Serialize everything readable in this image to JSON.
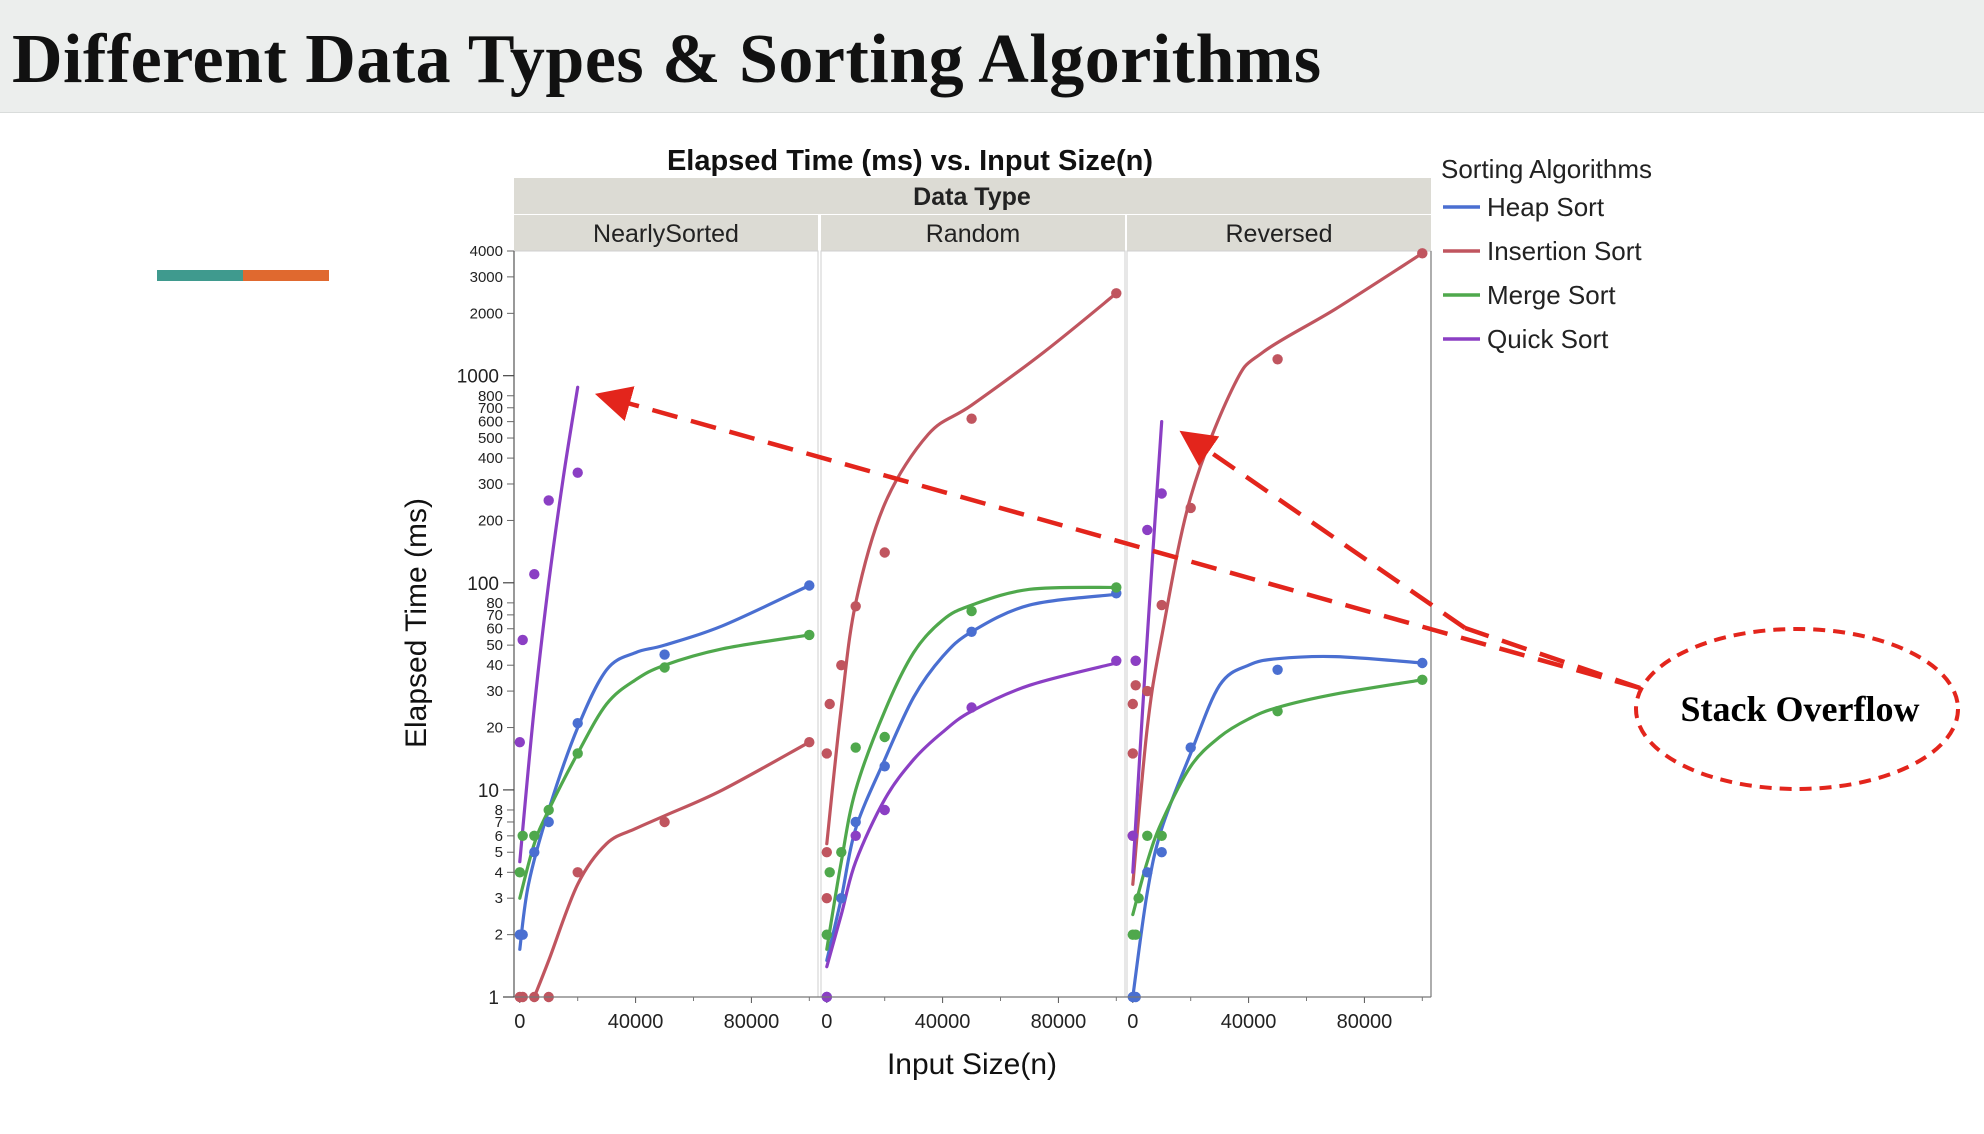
{
  "slide": {
    "title": "Different Data Types & Sorting Algorithms"
  },
  "colors": {
    "heap": "#4a6fd1",
    "insertion": "#c0555f",
    "merge": "#4fa84c",
    "quick": "#8b3fc4",
    "annotation": "#e3251c",
    "accent_teal": "#3f9a8e",
    "accent_orange": "#e0692f"
  },
  "chart_data": {
    "type": "scatter",
    "title": "Elapsed Time (ms) vs. Input Size(n)",
    "facet_header": "Data Type",
    "xlabel": "Input Size(n)",
    "ylabel": "Elapsed Time (ms)",
    "yscale": "log",
    "ylim": [
      1,
      4000
    ],
    "xlim": [
      -2000,
      103000
    ],
    "xticks": [
      0,
      40000,
      80000
    ],
    "yticks_major": [
      1,
      10,
      100,
      1000
    ],
    "yticks_minor": [
      2,
      3,
      4,
      5,
      6,
      7,
      8,
      20,
      30,
      40,
      50,
      60,
      70,
      80,
      200,
      300,
      400,
      500,
      600,
      700,
      800,
      2000,
      3000,
      4000
    ],
    "legend": {
      "title": "Sorting Algorithms",
      "placement": "right"
    },
    "series_names": [
      "Heap Sort",
      "Insertion Sort",
      "Merge Sort",
      "Quick Sort"
    ],
    "series_keys": [
      "heap",
      "insertion",
      "merge",
      "quick"
    ],
    "panels": [
      {
        "name": "NearlySorted",
        "series": {
          "heap": {
            "points": [
              [
                0,
                2
              ],
              [
                1000,
                2
              ],
              [
                5000,
                5
              ],
              [
                10000,
                7
              ],
              [
                20000,
                21
              ],
              [
                50000,
                45
              ],
              [
                100000,
                97
              ]
            ],
            "curve": [
              [
                0,
                1.7
              ],
              [
                3000,
                3.5
              ],
              [
                10000,
                8
              ],
              [
                20000,
                20
              ],
              [
                30000,
                38
              ],
              [
                40000,
                46
              ],
              [
                50000,
                50
              ],
              [
                70000,
                62
              ],
              [
                100000,
                97
              ]
            ]
          },
          "insertion": {
            "points": [
              [
                0,
                1
              ],
              [
                1000,
                1
              ],
              [
                5000,
                1
              ],
              [
                10000,
                1
              ],
              [
                20000,
                4
              ],
              [
                50000,
                7
              ],
              [
                100000,
                17
              ]
            ],
            "curve": [
              [
                5000,
                1
              ],
              [
                10000,
                1.5
              ],
              [
                20000,
                3.5
              ],
              [
                30000,
                5.5
              ],
              [
                40000,
                6.5
              ],
              [
                50000,
                7.5
              ],
              [
                70000,
                10
              ],
              [
                100000,
                17
              ]
            ]
          },
          "merge": {
            "points": [
              [
                0,
                4
              ],
              [
                1000,
                6
              ],
              [
                5000,
                6
              ],
              [
                10000,
                8
              ],
              [
                20000,
                15
              ],
              [
                50000,
                39
              ],
              [
                100000,
                56
              ]
            ],
            "curve": [
              [
                0,
                3
              ],
              [
                5000,
                5.5
              ],
              [
                10000,
                8
              ],
              [
                20000,
                15
              ],
              [
                30000,
                26
              ],
              [
                40000,
                34
              ],
              [
                50000,
                40
              ],
              [
                70000,
                48
              ],
              [
                100000,
                56
              ]
            ]
          },
          "quick": {
            "points": [
              [
                0,
                17
              ],
              [
                1000,
                53
              ],
              [
                5000,
                110
              ],
              [
                10000,
                250
              ],
              [
                20000,
                340
              ]
            ],
            "curve": [
              [
                0,
                4.5
              ],
              [
                5000,
                25
              ],
              [
                10000,
                100
              ],
              [
                15000,
                320
              ],
              [
                20000,
                880
              ]
            ]
          }
        }
      },
      {
        "name": "Random",
        "series": {
          "heap": {
            "points": [
              [
                0,
                1
              ],
              [
                5000,
                3
              ],
              [
                10000,
                7
              ],
              [
                20000,
                13
              ],
              [
                50000,
                58
              ],
              [
                100000,
                89
              ]
            ],
            "curve": [
              [
                0,
                1.5
              ],
              [
                5000,
                3
              ],
              [
                10000,
                6.5
              ],
              [
                20000,
                14
              ],
              [
                30000,
                28
              ],
              [
                40000,
                44
              ],
              [
                50000,
                58
              ],
              [
                70000,
                78
              ],
              [
                100000,
                88
              ]
            ]
          },
          "insertion": {
            "points": [
              [
                0,
                5
              ],
              [
                0,
                3
              ],
              [
                0,
                15
              ],
              [
                1000,
                26
              ],
              [
                5000,
                40
              ],
              [
                10000,
                77
              ],
              [
                20000,
                140
              ],
              [
                50000,
                620
              ],
              [
                100000,
                2500
              ]
            ],
            "curve": [
              [
                0,
                5.5
              ],
              [
                5000,
                25
              ],
              [
                10000,
                80
              ],
              [
                20000,
                240
              ],
              [
                35000,
                520
              ],
              [
                50000,
                720
              ],
              [
                75000,
                1300
              ],
              [
                100000,
                2500
              ]
            ]
          },
          "merge": {
            "points": [
              [
                0,
                2
              ],
              [
                1000,
                4
              ],
              [
                5000,
                5
              ],
              [
                10000,
                16
              ],
              [
                20000,
                18
              ],
              [
                50000,
                73
              ],
              [
                100000,
                95
              ]
            ],
            "curve": [
              [
                0,
                1.7
              ],
              [
                5000,
                4.5
              ],
              [
                10000,
                10
              ],
              [
                20000,
                24
              ],
              [
                30000,
                46
              ],
              [
                40000,
                66
              ],
              [
                50000,
                78
              ],
              [
                70000,
                93
              ],
              [
                100000,
                95
              ]
            ]
          },
          "quick": {
            "points": [
              [
                0,
                1
              ],
              [
                10000,
                6
              ],
              [
                20000,
                8
              ],
              [
                50000,
                25
              ],
              [
                100000,
                42
              ]
            ],
            "curve": [
              [
                0,
                1.4
              ],
              [
                5000,
                2.5
              ],
              [
                10000,
                4.5
              ],
              [
                20000,
                9
              ],
              [
                30000,
                14
              ],
              [
                40000,
                19
              ],
              [
                50000,
                24
              ],
              [
                70000,
                32
              ],
              [
                100000,
                41
              ]
            ]
          }
        }
      },
      {
        "name": "Reversed",
        "series": {
          "heap": {
            "points": [
              [
                0,
                1
              ],
              [
                1000,
                1
              ],
              [
                5000,
                4
              ],
              [
                10000,
                5
              ],
              [
                20000,
                16
              ],
              [
                50000,
                38
              ],
              [
                100000,
                41
              ]
            ],
            "curve": [
              [
                0,
                1
              ],
              [
                5000,
                3.2
              ],
              [
                10000,
                6.5
              ],
              [
                20000,
                15
              ],
              [
                30000,
                32
              ],
              [
                40000,
                40
              ],
              [
                50000,
                43
              ],
              [
                70000,
                44
              ],
              [
                100000,
                41
              ]
            ]
          },
          "insertion": {
            "points": [
              [
                0,
                6
              ],
              [
                0,
                15
              ],
              [
                0,
                26
              ],
              [
                1000,
                32
              ],
              [
                1000,
                42
              ],
              [
                5000,
                30
              ],
              [
                10000,
                78
              ],
              [
                20000,
                230
              ],
              [
                50000,
                1200
              ],
              [
                100000,
                3900
              ]
            ],
            "curve": [
              [
                0,
                3.5
              ],
              [
                5000,
                20
              ],
              [
                10000,
                55
              ],
              [
                20000,
                260
              ],
              [
                35000,
                900
              ],
              [
                45000,
                1300
              ],
              [
                70000,
                2100
              ],
              [
                100000,
                3900
              ]
            ]
          },
          "merge": {
            "points": [
              [
                0,
                2
              ],
              [
                1000,
                2
              ],
              [
                2000,
                3
              ],
              [
                5000,
                6
              ],
              [
                10000,
                6
              ],
              [
                50000,
                24
              ],
              [
                100000,
                34
              ]
            ],
            "curve": [
              [
                0,
                2.5
              ],
              [
                5000,
                4.5
              ],
              [
                10000,
                7
              ],
              [
                20000,
                13
              ],
              [
                30000,
                18
              ],
              [
                40000,
                22
              ],
              [
                50000,
                25
              ],
              [
                70000,
                29
              ],
              [
                100000,
                34
              ]
            ]
          },
          "quick": {
            "points": [
              [
                0,
                6
              ],
              [
                1000,
                42
              ],
              [
                5000,
                180
              ],
              [
                10000,
                270
              ]
            ],
            "curve": [
              [
                0,
                4
              ],
              [
                3000,
                20
              ],
              [
                6000,
                90
              ],
              [
                10000,
                600
              ]
            ]
          }
        }
      }
    ],
    "annotation": {
      "text": "Stack Overflow",
      "arrows_to": [
        {
          "panel": "NearlySorted",
          "x": 30000,
          "y": 850
        },
        {
          "panel": "Reversed",
          "x": 18000,
          "y": 560
        }
      ]
    }
  }
}
